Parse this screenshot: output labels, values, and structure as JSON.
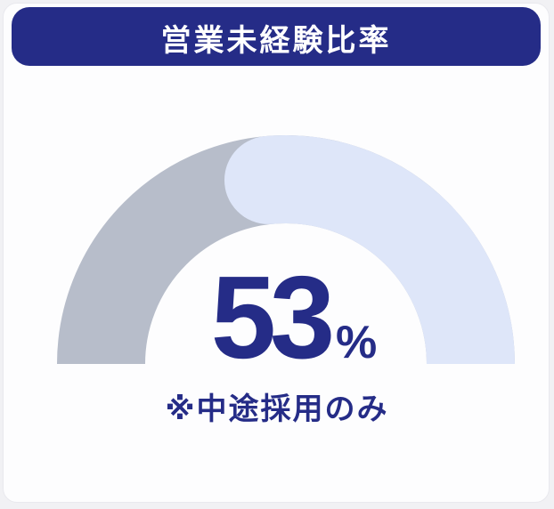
{
  "header": {
    "title": "営業未経験比率"
  },
  "stat": {
    "value": "53",
    "unit": "%",
    "note": "※中途採用のみ"
  },
  "colors": {
    "accent": "#252c87",
    "track": "#b7bdca",
    "fill": "#dee6f9",
    "card_bg": "#fdfdfe",
    "page_bg": "#f1f1f4"
  },
  "chart_data": {
    "type": "gauge",
    "shape": "semicircle-donut",
    "title": "営業未経験比率",
    "value": 53,
    "max": 100,
    "unit": "%",
    "note": "※中途採用のみ",
    "fill_from": "right-end-counterclockwise",
    "rounded_leading_cap": true,
    "value_color": "#dee6f9",
    "track_color": "#b7bdca",
    "center_label": "53%"
  }
}
